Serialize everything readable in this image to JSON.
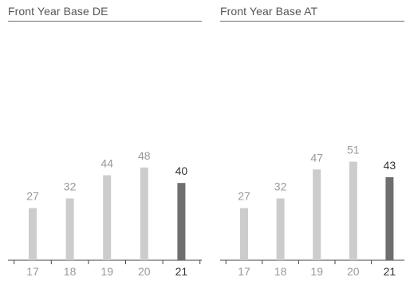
{
  "chart_data": [
    {
      "type": "bar",
      "title": "Front Year Base DE",
      "categories": [
        "17",
        "18",
        "19",
        "20",
        "21"
      ],
      "values": [
        27,
        32,
        44,
        48,
        40
      ],
      "colors": {
        "default": "#cccccc",
        "highlight": "#6e6e6e",
        "label": "#999999",
        "highlight_label": "#333333",
        "axis": "#444444"
      },
      "highlight_index": 4,
      "ylim": [
        0,
        100
      ],
      "grid": false,
      "legend": "none"
    },
    {
      "type": "bar",
      "title": "Front Year Base AT",
      "categories": [
        "17",
        "18",
        "19",
        "20",
        "21"
      ],
      "values": [
        27,
        32,
        47,
        51,
        43
      ],
      "colors": {
        "default": "#cccccc",
        "highlight": "#6e6e6e",
        "label": "#999999",
        "highlight_label": "#333333",
        "axis": "#444444"
      },
      "highlight_index": 4,
      "ylim": [
        0,
        100
      ],
      "grid": false,
      "legend": "none"
    }
  ]
}
